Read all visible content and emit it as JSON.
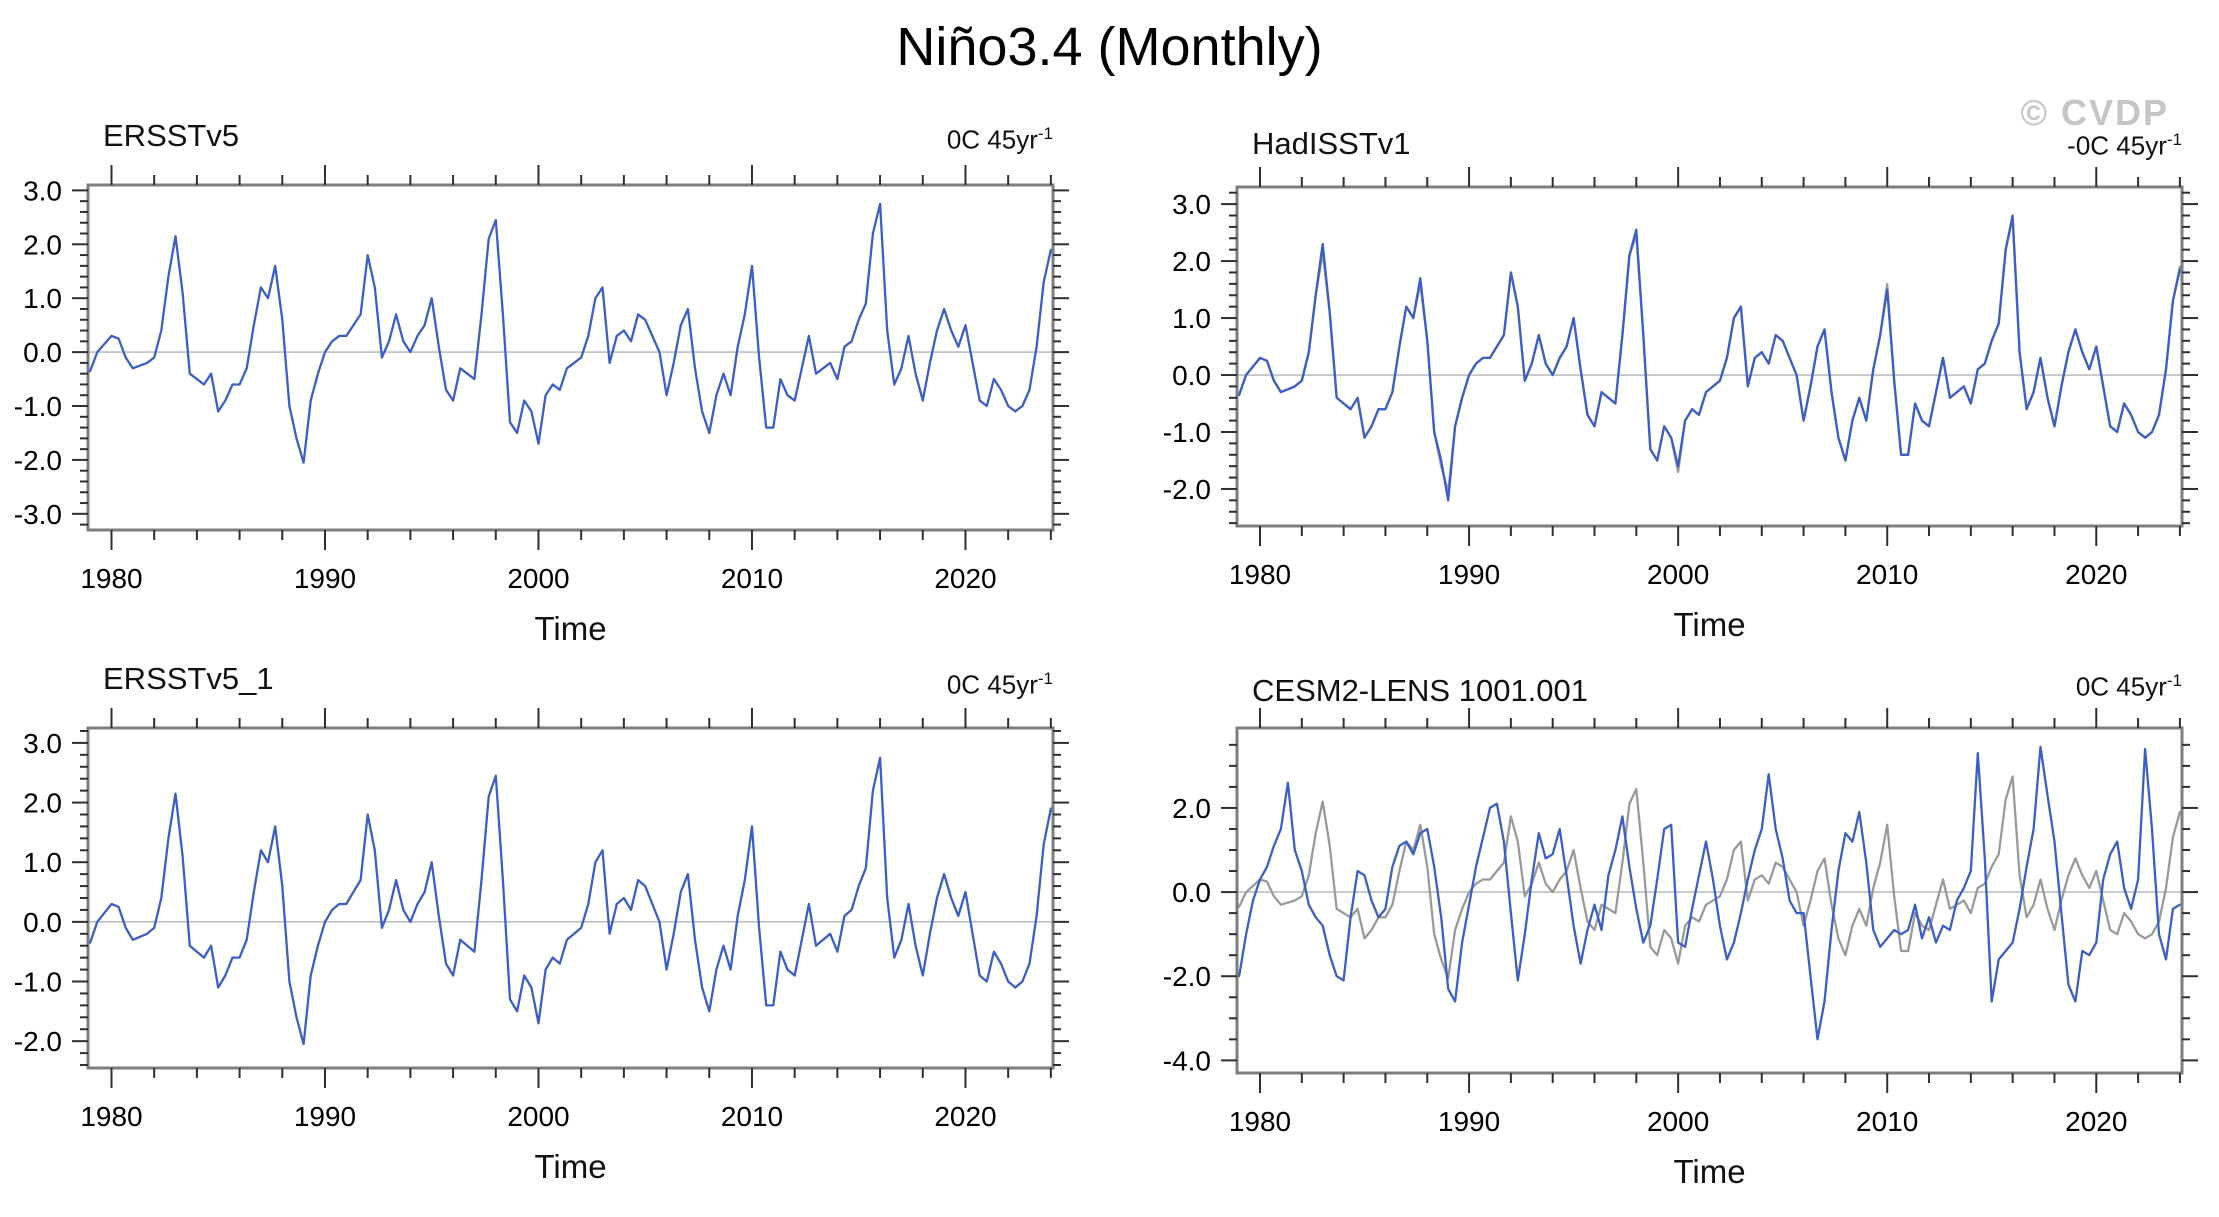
{
  "page": {
    "watermark": "© CVDP"
  },
  "chart_data": {
    "type": "line",
    "title": "Niño3.4 (Monthly)",
    "x_start": 1979.0,
    "x_step_years": 0.33333,
    "x_range": [
      1978.9,
      2024.1
    ],
    "x_ticks": [
      1980,
      1990,
      2000,
      2010,
      2020
    ],
    "x_minor_step_years": 2,
    "grid": "off",
    "legend": "none",
    "colors": {
      "primary_line": "#3c5ec8",
      "reference_line": "#9a9a9a",
      "frame": "#7e7e7e",
      "tick": "#2f2f2f",
      "zero_line": "#b4b4b4",
      "watermark": "#c6c6c6"
    },
    "series_data": {
      "ersstv5": [
        -0.35,
        0.0,
        0.15,
        0.3,
        0.25,
        -0.1,
        -0.3,
        -0.25,
        -0.2,
        -0.1,
        0.4,
        1.4,
        2.15,
        1.1,
        -0.4,
        -0.5,
        -0.6,
        -0.4,
        -1.1,
        -0.9,
        -0.6,
        -0.6,
        -0.3,
        0.5,
        1.2,
        1.0,
        1.6,
        0.6,
        -1.0,
        -1.6,
        -2.05,
        -0.9,
        -0.4,
        0.0,
        0.2,
        0.3,
        0.3,
        0.5,
        0.7,
        1.8,
        1.2,
        -0.1,
        0.2,
        0.7,
        0.2,
        0.0,
        0.3,
        0.5,
        1.0,
        0.1,
        -0.7,
        -0.9,
        -0.3,
        -0.4,
        -0.5,
        0.7,
        2.1,
        2.45,
        0.7,
        -1.3,
        -1.5,
        -0.9,
        -1.1,
        -1.7,
        -0.8,
        -0.6,
        -0.7,
        -0.3,
        -0.2,
        -0.1,
        0.3,
        1.0,
        1.2,
        -0.2,
        0.3,
        0.4,
        0.2,
        0.7,
        0.6,
        0.3,
        0.0,
        -0.8,
        -0.2,
        0.5,
        0.8,
        -0.3,
        -1.1,
        -1.5,
        -0.8,
        -0.4,
        -0.8,
        0.1,
        0.7,
        1.6,
        -0.1,
        -1.4,
        -1.4,
        -0.5,
        -0.8,
        -0.9,
        -0.3,
        0.3,
        -0.4,
        -0.3,
        -0.2,
        -0.5,
        0.1,
        0.2,
        0.6,
        0.9,
        2.2,
        2.75,
        0.4,
        -0.6,
        -0.3,
        0.3,
        -0.4,
        -0.9,
        -0.2,
        0.4,
        0.8,
        0.4,
        0.1,
        0.5,
        -0.2,
        -0.9,
        -1.0,
        -0.5,
        -0.7,
        -1.0,
        -1.1,
        -1.0,
        -0.7,
        0.1,
        1.3,
        1.9
      ],
      "hadisstv1": [
        -0.35,
        0.0,
        0.15,
        0.3,
        0.25,
        -0.1,
        -0.3,
        -0.25,
        -0.2,
        -0.1,
        0.4,
        1.4,
        2.3,
        1.1,
        -0.4,
        -0.5,
        -0.6,
        -0.4,
        -1.1,
        -0.9,
        -0.6,
        -0.6,
        -0.3,
        0.5,
        1.2,
        1.0,
        1.7,
        0.6,
        -1.0,
        -1.5,
        -2.2,
        -0.9,
        -0.4,
        0.0,
        0.2,
        0.3,
        0.3,
        0.5,
        0.7,
        1.8,
        1.2,
        -0.1,
        0.2,
        0.7,
        0.2,
        0.0,
        0.3,
        0.5,
        1.0,
        0.1,
        -0.7,
        -0.9,
        -0.3,
        -0.4,
        -0.5,
        0.7,
        2.1,
        2.55,
        0.7,
        -1.3,
        -1.5,
        -0.9,
        -1.1,
        -1.6,
        -0.8,
        -0.6,
        -0.7,
        -0.3,
        -0.2,
        -0.1,
        0.3,
        1.0,
        1.2,
        -0.2,
        0.3,
        0.4,
        0.2,
        0.7,
        0.6,
        0.3,
        0.0,
        -0.8,
        -0.2,
        0.5,
        0.8,
        -0.3,
        -1.1,
        -1.5,
        -0.8,
        -0.4,
        -0.8,
        0.1,
        0.7,
        1.5,
        -0.1,
        -1.4,
        -1.4,
        -0.5,
        -0.8,
        -0.9,
        -0.3,
        0.3,
        -0.4,
        -0.3,
        -0.2,
        -0.5,
        0.1,
        0.2,
        0.6,
        0.9,
        2.2,
        2.8,
        0.4,
        -0.6,
        -0.3,
        0.3,
        -0.4,
        -0.9,
        -0.2,
        0.4,
        0.8,
        0.4,
        0.1,
        0.5,
        -0.2,
        -0.9,
        -1.0,
        -0.5,
        -0.7,
        -1.0,
        -1.1,
        -1.0,
        -0.7,
        0.1,
        1.3,
        1.85
      ],
      "cesm2_lens_1001_001": [
        -2.0,
        -1.0,
        -0.2,
        0.3,
        0.6,
        1.1,
        1.5,
        2.6,
        1.0,
        0.5,
        -0.3,
        -0.6,
        -0.8,
        -1.5,
        -2.0,
        -2.1,
        -0.6,
        0.5,
        0.4,
        -0.2,
        -0.6,
        -0.4,
        0.6,
        1.1,
        1.2,
        0.9,
        1.4,
        1.5,
        0.6,
        -0.6,
        -2.3,
        -2.6,
        -1.2,
        -0.3,
        0.6,
        1.3,
        2.0,
        2.1,
        1.2,
        -0.5,
        -2.1,
        -1.0,
        0.3,
        1.4,
        0.8,
        0.9,
        1.5,
        0.4,
        -0.8,
        -1.7,
        -0.9,
        -0.3,
        -0.9,
        0.4,
        1.0,
        1.8,
        0.6,
        -0.4,
        -1.2,
        -0.8,
        0.3,
        1.5,
        1.6,
        -1.2,
        -1.3,
        -0.4,
        0.4,
        1.2,
        0.3,
        -0.8,
        -1.6,
        -1.2,
        -0.5,
        0.3,
        1.0,
        1.5,
        2.8,
        1.5,
        0.8,
        -0.2,
        -0.5,
        -0.5,
        -2.0,
        -3.5,
        -2.6,
        -0.9,
        0.5,
        1.4,
        1.2,
        1.9,
        0.7,
        -0.9,
        -1.3,
        -1.1,
        -0.9,
        -1.0,
        -0.9,
        -0.3,
        -1.1,
        -0.6,
        -1.2,
        -0.8,
        -0.9,
        -0.2,
        0.1,
        0.5,
        3.3,
        0.8,
        -2.6,
        -1.6,
        -1.4,
        -1.2,
        -0.4,
        0.6,
        1.5,
        3.45,
        2.3,
        1.2,
        -0.5,
        -2.2,
        -2.6,
        -1.4,
        -1.5,
        -1.2,
        0.3,
        0.9,
        1.2,
        0.1,
        -0.4,
        0.3,
        3.4,
        1.5,
        -1.0,
        -1.6,
        -0.4,
        -0.3
      ]
    },
    "panels": [
      {
        "title": "ERSSTv5",
        "trend_base": "0C 45yr",
        "trend_exp": "-1",
        "xlabel": "Time",
        "ylim": [
          -3.3,
          3.1
        ],
        "y_major_ticks": [
          3.0,
          2.0,
          1.0,
          0.0,
          -1.0,
          -2.0,
          -3.0
        ],
        "y_minor_step": 0.2,
        "lines": [
          {
            "series": "ersstv5",
            "role": "primary"
          }
        ]
      },
      {
        "title": "HadISSTv1",
        "trend_base": "-0C 45yr",
        "trend_exp": "-1",
        "xlabel": "Time",
        "ylim": [
          -2.65,
          3.3
        ],
        "y_major_ticks": [
          3.0,
          2.0,
          1.0,
          0.0,
          -1.0,
          -2.0
        ],
        "y_minor_step": 0.2,
        "lines": [
          {
            "series": "ersstv5",
            "role": "reference"
          },
          {
            "series": "hadisstv1",
            "role": "primary"
          }
        ]
      },
      {
        "title": "ERSSTv5_1",
        "trend_base": "0C 45yr",
        "trend_exp": "-1",
        "xlabel": "Time",
        "ylim": [
          -2.45,
          3.25
        ],
        "y_major_ticks": [
          3.0,
          2.0,
          1.0,
          0.0,
          -1.0,
          -2.0
        ],
        "y_minor_step": 0.2,
        "lines": [
          {
            "series": "ersstv5",
            "role": "primary"
          }
        ]
      },
      {
        "title": "CESM2-LENS 1001.001",
        "trend_base": "0C 45yr",
        "trend_exp": "-1",
        "xlabel": "Time",
        "ylim": [
          -4.3,
          3.9
        ],
        "y_major_ticks": [
          2.0,
          0.0,
          -2.0,
          -4.0
        ],
        "y_minor_step": 0.5,
        "lines": [
          {
            "series": "ersstv5",
            "role": "reference"
          },
          {
            "series": "cesm2_lens_1001_001",
            "role": "primary"
          }
        ]
      }
    ]
  }
}
